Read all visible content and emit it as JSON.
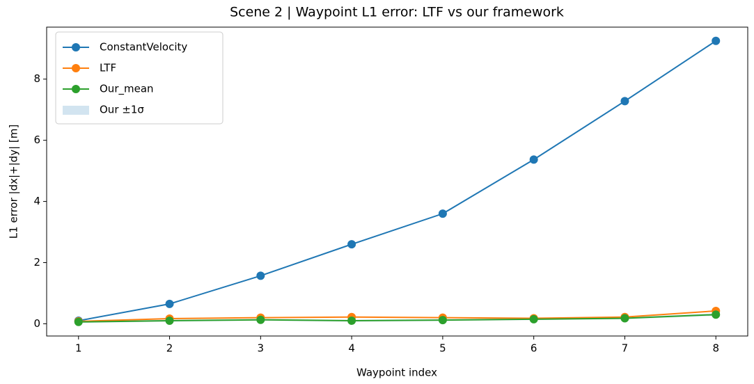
{
  "chart_data": {
    "type": "line",
    "title": "Scene 2 | Waypoint L1 error: LTF vs our framework",
    "xlabel": "Waypoint index",
    "ylabel": "L1 error |dx|+|dy| [m]",
    "x": [
      1,
      2,
      3,
      4,
      5,
      6,
      7,
      8
    ],
    "series": [
      {
        "name": "ConstantVelocity",
        "color": "#1f77b4",
        "values": [
          0.1,
          0.65,
          1.57,
          2.6,
          3.6,
          5.37,
          7.28,
          9.25
        ]
      },
      {
        "name": "LTF",
        "color": "#ff7f0e",
        "values": [
          0.08,
          0.17,
          0.2,
          0.22,
          0.2,
          0.18,
          0.22,
          0.42
        ]
      },
      {
        "name": "Our_mean",
        "color": "#2ca02c",
        "values": [
          0.06,
          0.1,
          0.13,
          0.1,
          0.12,
          0.15,
          0.18,
          0.3
        ]
      }
    ],
    "band": {
      "name": "Our ±1σ",
      "color": "#1f77b4",
      "lower": [
        0.03,
        0.07,
        0.1,
        0.07,
        0.09,
        0.12,
        0.15,
        0.26
      ],
      "upper": [
        0.09,
        0.13,
        0.16,
        0.13,
        0.15,
        0.18,
        0.21,
        0.34
      ]
    },
    "xlim": [
      0.65,
      8.35
    ],
    "ylim": [
      -0.4,
      9.7
    ],
    "xticks": [
      1,
      2,
      3,
      4,
      5,
      6,
      7,
      8
    ],
    "yticks": [
      0,
      2,
      4,
      6,
      8
    ],
    "legend": "upper left"
  }
}
